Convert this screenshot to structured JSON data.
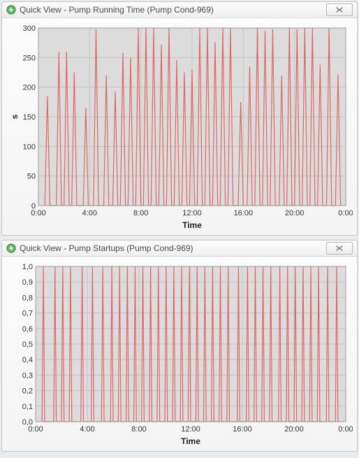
{
  "panels": [
    {
      "title": "Quick View - Pump Running Time (Pump Cond-969)",
      "chart": {
        "type": "line",
        "background_color": "#dcdcdc",
        "grid_color": "#c4c4c4",
        "border_color": "#9c9c9c",
        "series_color": "#e06666",
        "xlabel": "Time",
        "ylabel": "s",
        "xlim": [
          0,
          24
        ],
        "ylim": [
          0,
          300
        ],
        "xtick_step": 4,
        "ytick_step": 50,
        "xtick_labels": [
          "0:00",
          "4:00",
          "8:00",
          "12:00",
          "16:00",
          "20:00",
          "0:00"
        ],
        "label_fontsize": 11,
        "axis_label_fontsize": 12,
        "x": [
          0.5,
          0.7,
          0.9,
          1.4,
          1.6,
          1.8,
          2.0,
          2.2,
          2.4,
          2.6,
          2.8,
          3.0,
          3.5,
          3.7,
          3.9,
          4.3,
          4.5,
          4.7,
          5.1,
          5.3,
          5.5,
          5.8,
          6.0,
          6.2,
          6.4,
          6.6,
          6.8,
          7.0,
          7.2,
          7.4,
          7.6,
          7.8,
          8.0,
          8.2,
          8.4,
          8.6,
          8.8,
          9.0,
          9.2,
          9.4,
          9.6,
          9.8,
          10.0,
          10.2,
          10.4,
          10.6,
          10.8,
          11.0,
          11.2,
          11.4,
          11.6,
          11.8,
          12.0,
          12.2,
          12.4,
          12.6,
          12.8,
          13.0,
          13.2,
          13.4,
          13.6,
          13.8,
          14.0,
          14.2,
          14.4,
          14.6,
          14.8,
          15.0,
          15.2,
          15.6,
          15.8,
          16.0,
          16.3,
          16.5,
          16.7,
          16.9,
          17.1,
          17.3,
          17.5,
          17.7,
          17.9,
          18.1,
          18.3,
          18.5,
          18.8,
          19.0,
          19.2,
          19.4,
          19.6,
          19.8,
          20.0,
          20.2,
          20.4,
          20.6,
          20.8,
          21.0,
          21.2,
          21.4,
          21.6,
          21.8,
          22.0,
          22.2,
          22.5,
          22.7,
          22.9,
          23.2,
          23.4,
          23.6
        ],
        "y": [
          0,
          185,
          0,
          0,
          260,
          0,
          0,
          260,
          0,
          0,
          225,
          0,
          0,
          165,
          0,
          0,
          298,
          0,
          0,
          220,
          0,
          0,
          193,
          0,
          0,
          258,
          0,
          0,
          250,
          0,
          0,
          300,
          0,
          0,
          300,
          0,
          0,
          300,
          0,
          0,
          272,
          0,
          0,
          300,
          0,
          0,
          246,
          0,
          0,
          225,
          0,
          0,
          230,
          0,
          0,
          300,
          0,
          0,
          300,
          0,
          0,
          276,
          0,
          0,
          300,
          0,
          0,
          300,
          0,
          0,
          175,
          0,
          0,
          235,
          0,
          0,
          300,
          0,
          0,
          295,
          0,
          0,
          298,
          0,
          0,
          220,
          0,
          0,
          300,
          0,
          0,
          298,
          0,
          0,
          300,
          0,
          0,
          300,
          0,
          0,
          238,
          0,
          0,
          300,
          0,
          0,
          222,
          0
        ]
      }
    },
    {
      "title": "Quick View - Pump Startups (Pump Cond-969)",
      "chart": {
        "type": "line",
        "background_color": "#dcdcdc",
        "grid_color": "#c4c4c4",
        "border_color": "#9c9c9c",
        "series_color": "#e06666",
        "xlabel": "Time",
        "ylabel": "",
        "xlim": [
          0,
          24
        ],
        "ylim": [
          0,
          1
        ],
        "xtick_step": 4,
        "ytick_step": 0.1,
        "y_decimal_comma": true,
        "xtick_labels": [
          "0:00",
          "4:00",
          "8:00",
          "12:00",
          "16:00",
          "20:00",
          "0:00"
        ],
        "label_fontsize": 11,
        "axis_label_fontsize": 12,
        "x": [
          0.5,
          0.6,
          0.7,
          1.4,
          1.5,
          1.6,
          2.0,
          2.1,
          2.2,
          2.6,
          2.7,
          2.8,
          3.5,
          3.6,
          3.7,
          4.3,
          4.4,
          4.5,
          5.1,
          5.2,
          5.3,
          5.8,
          5.9,
          6.0,
          6.4,
          6.5,
          6.6,
          7.0,
          7.1,
          7.2,
          7.6,
          7.7,
          7.8,
          8.2,
          8.3,
          8.4,
          8.8,
          8.9,
          9.0,
          9.4,
          9.5,
          9.6,
          10.0,
          10.1,
          10.2,
          10.6,
          10.7,
          10.8,
          11.2,
          11.3,
          11.4,
          11.8,
          11.9,
          12.0,
          12.4,
          12.5,
          12.6,
          13.0,
          13.1,
          13.2,
          13.6,
          13.7,
          13.8,
          14.2,
          14.3,
          14.4,
          14.8,
          14.9,
          15.0,
          15.6,
          15.7,
          15.8,
          16.3,
          16.4,
          16.5,
          16.9,
          17.0,
          17.1,
          17.5,
          17.6,
          17.7,
          18.1,
          18.2,
          18.3,
          18.8,
          18.9,
          19.0,
          19.4,
          19.5,
          19.6,
          20.0,
          20.1,
          20.2,
          20.6,
          20.7,
          20.8,
          21.2,
          21.3,
          21.4,
          21.8,
          21.9,
          22.0,
          22.5,
          22.6,
          22.7,
          23.2,
          23.3,
          23.4
        ],
        "y": [
          0,
          1,
          0,
          0,
          1,
          0,
          0,
          1,
          0,
          0,
          1,
          0,
          0,
          1,
          0,
          0,
          1,
          0,
          0,
          1,
          0,
          0,
          1,
          0,
          0,
          1,
          0,
          0,
          1,
          0,
          0,
          1,
          0,
          0,
          1,
          0,
          0,
          1,
          0,
          0,
          1,
          0,
          0,
          1,
          0,
          0,
          1,
          0,
          0,
          1,
          0,
          0,
          1,
          0,
          0,
          1,
          0,
          0,
          1,
          0,
          0,
          1,
          0,
          0,
          1,
          0,
          0,
          1,
          0,
          0,
          1,
          0,
          0,
          1,
          0,
          0,
          1,
          0,
          0,
          1,
          0,
          0,
          1,
          0,
          0,
          1,
          0,
          0,
          1,
          0,
          0,
          1,
          0,
          0,
          1,
          0,
          0,
          1,
          0,
          0,
          1,
          0,
          0,
          1,
          0,
          0,
          1,
          0
        ]
      }
    }
  ],
  "close_x_label": "Close"
}
